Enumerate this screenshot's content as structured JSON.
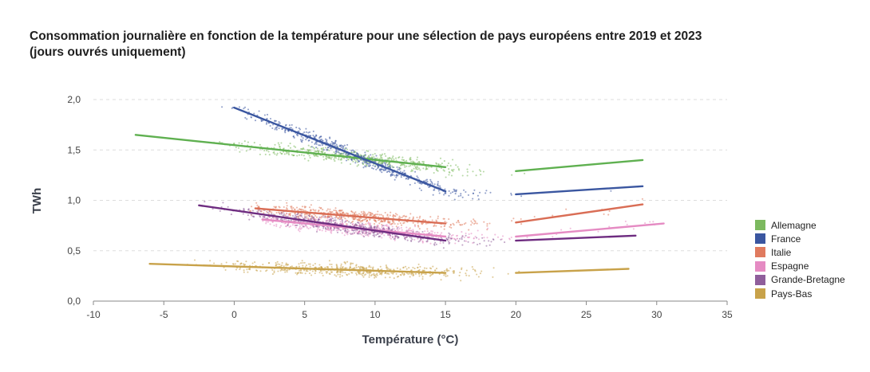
{
  "chart_data": {
    "type": "scatter",
    "title_line1": "Consommation journalière en fonction de la température pour une sélection de pays européens entre 2019 et 2023",
    "title_line2": "(jours ouvrés uniquement)",
    "xlabel": "Température (°C)",
    "ylabel": "TWh",
    "xlim": [
      -10,
      35
    ],
    "ylim": [
      0,
      2
    ],
    "xticks": [
      "-10",
      "-5",
      "0",
      "5",
      "10",
      "15",
      "20",
      "25",
      "30",
      "35"
    ],
    "yticks": [
      "0,0",
      "0,5",
      "1,0",
      "1,5",
      "2,0"
    ],
    "grid": true,
    "legend_position": "right",
    "series": [
      {
        "name": "Allemagne",
        "color": "#7cb95f",
        "line_color": "#5fb050",
        "cloud_center": [
          1.58,
          1.3
        ],
        "cloud_x": [
          -7,
          29
        ],
        "fit": [
          [
            -7,
            1.65
          ],
          [
            15,
            1.33
          ],
          [
            20,
            1.29
          ],
          [
            29,
            1.4
          ]
        ],
        "break": 1
      },
      {
        "name": "France",
        "color": "#3a56a0",
        "line_color": "#3a56a0",
        "cloud_center": [
          1.85,
          1.08
        ],
        "cloud_x": [
          -1,
          29
        ],
        "fit": [
          [
            0,
            1.92
          ],
          [
            15,
            1.09
          ],
          [
            20,
            1.06
          ],
          [
            29,
            1.14
          ]
        ],
        "break": 1
      },
      {
        "name": "Italie",
        "color": "#e07b5f",
        "line_color": "#d96d55",
        "cloud_center": [
          0.92,
          0.79
        ],
        "cloud_x": [
          1,
          29
        ],
        "fit": [
          [
            1.5,
            0.92
          ],
          [
            15,
            0.77
          ],
          [
            20,
            0.78
          ],
          [
            29,
            0.96
          ]
        ],
        "break": 1
      },
      {
        "name": "Espagne",
        "color": "#e58bc3",
        "line_color": "#e58bc3",
        "cloud_center": [
          0.8,
          0.69
        ],
        "cloud_x": [
          2,
          30.5
        ],
        "fit": [
          [
            2,
            0.81
          ],
          [
            15,
            0.64
          ],
          [
            20,
            0.64
          ],
          [
            30.5,
            0.77
          ]
        ],
        "break": 1
      },
      {
        "name": "Grande-Bretagne",
        "color": "#8f5e9b",
        "line_color": "#6e2c80",
        "cloud_center": [
          0.92,
          0.6
        ],
        "cloud_x": [
          -2.5,
          29
        ],
        "fit": [
          [
            -2.5,
            0.95
          ],
          [
            15,
            0.6
          ],
          [
            20,
            0.6
          ],
          [
            28.5,
            0.65
          ]
        ],
        "break": 1
      },
      {
        "name": "Pays-Bas",
        "color": "#c8a24a",
        "line_color": "#c8a24a",
        "cloud_center": [
          0.36,
          0.29
        ],
        "cloud_x": [
          -6,
          28
        ],
        "fit": [
          [
            -6,
            0.37
          ],
          [
            15,
            0.28
          ],
          [
            20,
            0.28
          ],
          [
            28,
            0.32
          ]
        ],
        "break": 1
      }
    ]
  }
}
